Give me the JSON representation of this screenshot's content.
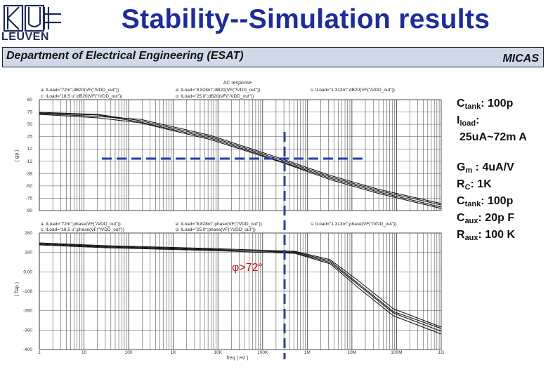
{
  "header": {
    "logo_text": "LEUVEN",
    "title": "Stability--Simulation results",
    "department": "Department of Electrical Engineering (ESAT)",
    "group": "MICAS"
  },
  "chart": {
    "main_title": "AC response",
    "x_axis_label": "freq ( Hz )",
    "x_ticks": [
      "1",
      "10",
      "100",
      "1K",
      "10K",
      "100K",
      "1M",
      "10M",
      "100M",
      "1G"
    ],
    "top": {
      "ylabel": "( dB )",
      "y_ticks": [
        "60",
        "75",
        "50",
        "25",
        "12",
        "-12",
        "-38",
        "-50",
        "-75",
        "-90"
      ],
      "legends": [
        "a: ILoad=\"72m\";dB20(VF(\"/VDD_out\"))",
        "c: ILoad=\"18.5 u\";dB20(VF(\"/VDD_out\"))",
        "e: ILoad=\"8.828m\";dB20(VF(\"/VDD_out\"))",
        "o: ILoad=\"25.0\";dB20(VF(\"/VDD_out\"))",
        "s: ILoad=\"1.313m\";dB20(VF(\"/VDD_out\"))"
      ]
    },
    "bottom": {
      "ylabel": "( deg )",
      "y_ticks": [
        "280",
        "180",
        "0.00",
        "-108",
        "-280",
        "-390",
        "-400"
      ],
      "legends": [
        "a: ILoad=\"72m\";phase(VF(\"/VDD_out\"))",
        "c: ILoad=\"18.5 u\";phase(VF(\"/VDD_out\"))",
        "e: ILoad=\"8.828m\";phase(VF(\"/VDD_out\"))",
        "o: ILoad=\"25.0\";phase(VF(\"/VDD_out\"))",
        "s: ILoad=\"1.313m\";phase(VF(\"/VDD_out\"))"
      ],
      "annotation": "φ>72°"
    }
  },
  "parameters": {
    "c_tank_1": {
      "name": "C",
      "sub": "tank",
      "value": ": 100p"
    },
    "i_load": {
      "name": "I",
      "sub": "load",
      "value": ":",
      "range": "25uA~72m A"
    },
    "g_m": {
      "name": "G",
      "sub": "m",
      "value": " : 4uA/V"
    },
    "r_c": {
      "name": "R",
      "sub": "C",
      "value": ": 1K"
    },
    "c_tank_2": {
      "name": "C",
      "sub": "tank",
      "value": ": 100p"
    },
    "c_aux": {
      "name": "C",
      "sub": "aux",
      "value": ": 20p F"
    },
    "r_aux": {
      "name": "R",
      "sub": "aux",
      "value": ": 100 K"
    }
  },
  "colors": {
    "title": "#1f2d99",
    "marker": "#2b3aa8",
    "dept_bar": "#cfd9e8"
  }
}
